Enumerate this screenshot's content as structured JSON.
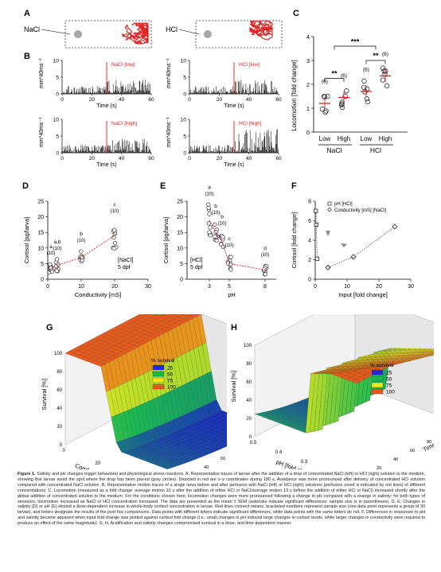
{
  "panels": {
    "A": {
      "label": "A",
      "left": "NaCl",
      "right": "HCl"
    },
    "B": {
      "label": "B",
      "ylabel": "mm*40ms⁻¹",
      "xlabel": "Time (s)",
      "ticks_x": [
        "0",
        "20",
        "40",
        "60"
      ],
      "ticks_y": [
        "10",
        "5",
        "0"
      ],
      "traces": [
        "NaCl [low]",
        "HCl [low]",
        "NaCl [high]",
        "HCl [high]"
      ]
    },
    "C": {
      "label": "C",
      "ylabel": "Locomotion [fold change]",
      "ticks_y": [
        "0",
        "1",
        "2",
        "3",
        "4"
      ],
      "x_groups": [
        "Low",
        "High",
        "Low",
        "High"
      ],
      "groups": [
        "NaCl",
        "HCl"
      ],
      "n": [
        "(6)",
        "(6)",
        "(6)",
        "(6)"
      ],
      "sig": [
        "**",
        "**",
        "***"
      ]
    },
    "D": {
      "label": "D",
      "ylabel": "Cortisol [pg/larva]",
      "xlabel": "Conductivity [mS]",
      "ticks_x": [
        "0",
        "10",
        "20",
        "30"
      ],
      "ticks_y": [
        "0",
        "5",
        "10",
        "15",
        "20",
        "25"
      ],
      "letters": [
        "a",
        "a,b",
        "b",
        "c"
      ],
      "n": [
        "(10)",
        "(10)",
        "(10)",
        "(10)"
      ],
      "note1": "[NaCl]",
      "note2": "5 dpf"
    },
    "E": {
      "label": "E",
      "ylabel": "Cortisol [pg/larva]",
      "xlabel": "pH",
      "ticks_x": [
        "3",
        "5",
        "8"
      ],
      "ticks_y": [
        "0",
        "5",
        "10",
        "15",
        "20",
        "25"
      ],
      "letters": [
        "a",
        "b",
        "b",
        "c",
        "d"
      ],
      "n": [
        "(10)",
        "(10)",
        "(10)",
        "(10)",
        "(10)"
      ],
      "note1": "[HCl]",
      "note2": "5 dpf"
    },
    "F": {
      "label": "F",
      "ylabel": "Cortisol [fold change]",
      "xlabel": "Input [fold change]",
      "ticks_x": [
        "0",
        "10",
        "20",
        "30"
      ],
      "ticks_y": [
        "0",
        "2",
        "4",
        "6",
        "8"
      ],
      "legend1": "pH [HCl]",
      "legend2": "Conductivity [mS] [NaCl]"
    },
    "G": {
      "label": "G",
      "zlabel": "Survival [%]",
      "xlabel": "Conductivity [fold change]",
      "ylabel": "Time [min.]",
      "ticks_z": [
        "100",
        "80",
        "60",
        "40",
        "20",
        "0"
      ],
      "ticks_x": [
        "0",
        "20",
        "40",
        "60"
      ],
      "ticks_y": [
        "0",
        "10",
        "20",
        "30",
        "40",
        "50",
        "60",
        "70",
        "80",
        "90",
        "100",
        "110",
        "120"
      ],
      "legend_title": "% survival",
      "legend": [
        "25",
        "50",
        "75",
        "100"
      ]
    },
    "H": {
      "label": "H",
      "zlabel": "Survival [%]",
      "xlabel": "pH [fold change]",
      "ylabel": "Time [min.]",
      "ticks_z": [
        "100",
        "80",
        "60",
        "40",
        "20",
        "0"
      ],
      "ticks_x": [
        "0.5",
        "0.4",
        "0.3",
        "0.2",
        "0.1"
      ],
      "ticks_y": [
        "0",
        "10",
        "20",
        "30",
        "40",
        "50",
        "60",
        "70",
        "80",
        "90",
        "100",
        "110",
        "120"
      ],
      "legend_title": "% survival",
      "legend": [
        "25",
        "50",
        "75",
        "100"
      ]
    }
  },
  "colors": {
    "accent": "#e02020",
    "survival_25": "#1a2bd6",
    "survival_50": "#19b84a",
    "survival_75": "#e8e81c",
    "survival_100": "#e8571a"
  },
  "caption": {
    "fig": "Figure 1.",
    "body": "Salinity and pH changes trigger behavioral and physiological stress reactions. A, Representative traces of larvae after the addition of a drop of concentrated NaCl (left) or HCl (right) solution to the medium, showing that larvae avoid the spot where the drop has been placed (gray circles). Depicted in red are x–y coordinates during 180 s. Avoidance was more pronounced after delivery of concentrated HCl solution compared with concentrated NaCl solution. B, Representative motion traces of a single larva before and after perfusion with NaCl (left) or HCl (right) solutions (perfusion onset is indicated by red lines) of different concentrations. C, Locomotion (measured as a fold change: average motion 10 s after the addition of either HCl or NaCl/average motion 10 s before the addition of either HCl or NaCl) increased shortly after the global addition of concentrated solution to the medium. For the conditions chosen here, locomotion changes were more pronounced following a change in pH compared with a change in salinity; for both types of stressors, locomotion increased as NaCl or HCl concentration increased. The data are presented as the mean ± SEM (asterisks indicate significant differences; sample size is in parentheses). D, E, Changes in salinity (D) or pH (E) elicited a dose-dependent increase in whole-body cortisol concentration in larvae. Red lines connect means, bracketed numbers represent sample size (one data point represents a group of 30 larvae), and letters designate the results of the post hoc comparisons. Data points with different letters indicate significant differences, while data points with the same letters do not. F, Differences in responses to pH and salinity became apparent when input fold change was plotted against cortisol fold change (i.e., small changes in pH induced large changes in cortisol levels, while larger changes in conductivity were required to produce an effect of the same magnitude). G, H, Acidification and salinity changes compromised survival in a dose- and time-dependent manner."
  }
}
